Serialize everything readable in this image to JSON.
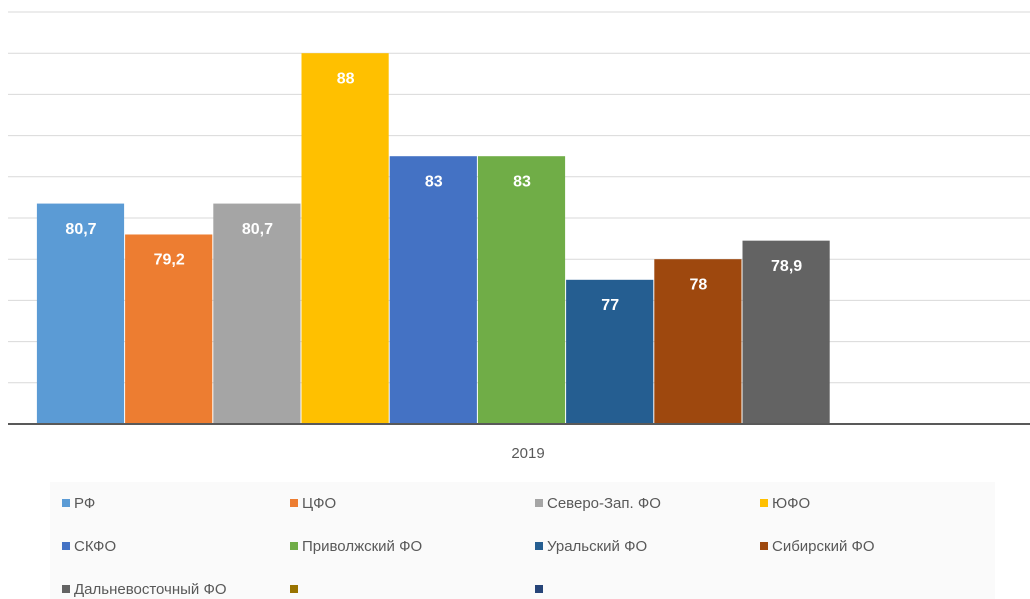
{
  "chart_data": {
    "type": "bar",
    "categories": [
      "2019"
    ],
    "series": [
      {
        "name": "РФ",
        "color": "#5b9bd5",
        "values": [
          80.7
        ],
        "value_labels": [
          "80,7"
        ]
      },
      {
        "name": "ЦФО",
        "color": "#ed7d31",
        "values": [
          79.2
        ],
        "value_labels": [
          "79,2"
        ]
      },
      {
        "name": "Северо-Зап. ФО",
        "color": "#a5a5a5",
        "values": [
          80.7
        ],
        "value_labels": [
          "80,7"
        ]
      },
      {
        "name": "ЮФО",
        "color": "#ffc000",
        "values": [
          88
        ]
      },
      {
        "name": "СКФО",
        "color": "#4472c4",
        "values": [
          83
        ]
      },
      {
        "name": "Приволжский ФО",
        "color": "#70ad47",
        "values": [
          83
        ]
      },
      {
        "name": "Уральский ФО",
        "color": "#255e91",
        "values": [
          77
        ]
      },
      {
        "name": "Сибирский ФО",
        "color": "#9e480e",
        "values": [
          78
        ]
      },
      {
        "name": "Дальневосточный ФО",
        "color": "#636363",
        "values": [
          78.9
        ],
        "value_labels": [
          "78,9"
        ]
      },
      {
        "name": null,
        "color": "#997300",
        "values": [
          null
        ]
      },
      {
        "name": null,
        "color": "#264478",
        "values": [
          null
        ]
      }
    ],
    "ylim": [
      70,
      90
    ],
    "yticks": [
      70,
      72,
      74,
      76,
      78,
      80,
      82,
      84,
      86,
      88,
      90
    ],
    "grid": true
  }
}
